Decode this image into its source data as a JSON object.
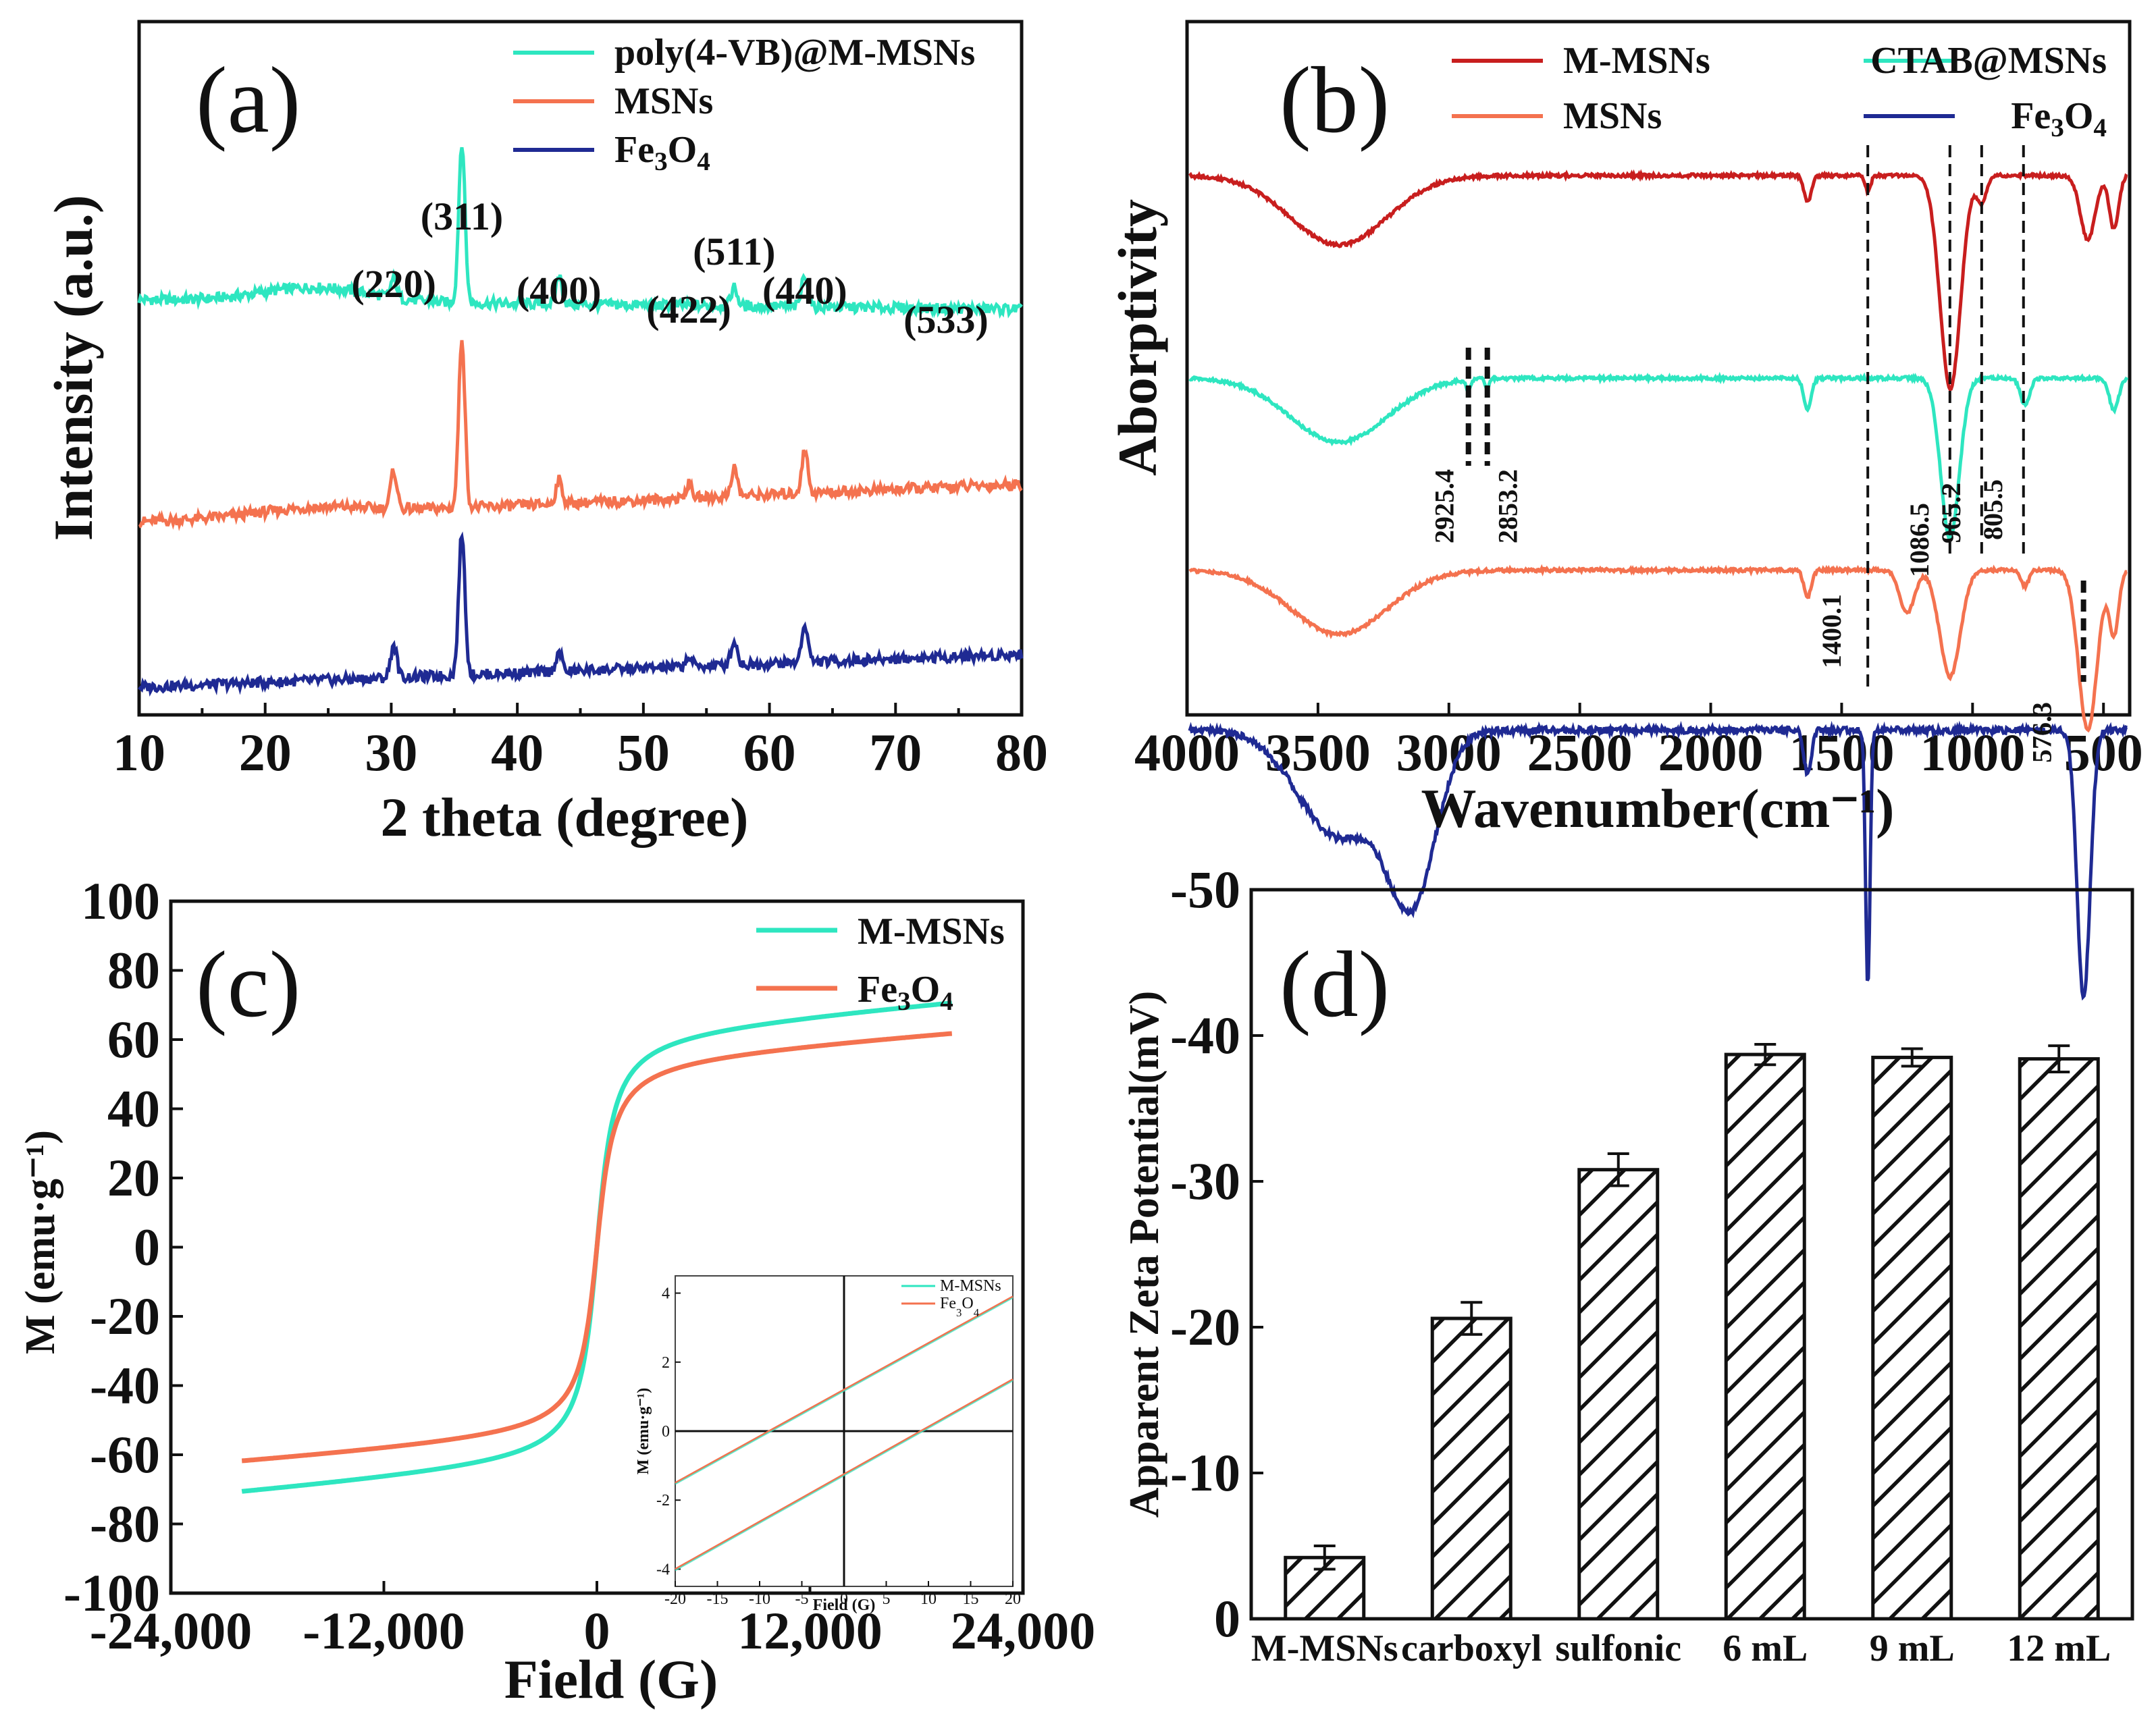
{
  "figure": {
    "panels": [
      "(a)",
      "(b)",
      "(c)",
      "(d)"
    ]
  },
  "chart_data": [
    {
      "panel": "(a)",
      "type": "line",
      "xlabel": "2 theta (degree)",
      "ylabel": "Intensity (a.u.)",
      "xlim": [
        10,
        80
      ],
      "xticks": [
        10,
        20,
        30,
        40,
        50,
        60,
        70,
        80
      ],
      "legend_position": "top-right",
      "peaks": [
        {
          "label": "(220)",
          "x": 30.2
        },
        {
          "label": "(311)",
          "x": 35.6
        },
        {
          "label": "(400)",
          "x": 43.3
        },
        {
          "label": "(422)",
          "x": 53.6
        },
        {
          "label": "(511)",
          "x": 57.2
        },
        {
          "label": "(440)",
          "x": 62.8
        },
        {
          "label": "(533)",
          "x": 74.0
        }
      ],
      "series": [
        {
          "name": "poly(4-VB)@M-MSNs",
          "color": "#2ee6c0",
          "offset": 0.0,
          "baseline_start": 0.08,
          "baseline_end": 0.06,
          "hump_center": 24,
          "hump_height": 0.03,
          "intensity": [
            0.04,
            0.34,
            0.06,
            0.0,
            0.04,
            0.07,
            0.0
          ]
        },
        {
          "name": "MSNs",
          "color": "#f4724f",
          "offset": -0.37,
          "baseline_start": -0.02,
          "baseline_end": 0.06,
          "hump_center": 24,
          "hump_height": 0.015,
          "intensity": [
            0.08,
            0.36,
            0.05,
            0.03,
            0.06,
            0.09,
            0.0
          ]
        },
        {
          "name": "Fe₃O₄",
          "color": "#1f2a93",
          "offset": -0.72,
          "baseline_start": -0.02,
          "baseline_end": 0.05,
          "hump_center": 24,
          "hump_height": 0.0,
          "intensity": [
            0.07,
            0.3,
            0.04,
            0.02,
            0.05,
            0.08,
            0.0
          ]
        }
      ]
    },
    {
      "panel": "(b)",
      "type": "line",
      "xlabel": "Wavenumber(cm⁻¹)",
      "ylabel": "Aborptivity",
      "xlim": [
        4000,
        400
      ],
      "xticks": [
        4000,
        3500,
        3000,
        2500,
        2000,
        1500,
        1000,
        500
      ],
      "legend_position": "top",
      "annotations": [
        {
          "label": "2925.4",
          "x": 2925.4
        },
        {
          "label": "2853.2",
          "x": 2853.2
        },
        {
          "label": "1400.1",
          "x": 1400.1
        },
        {
          "label": "1086.5",
          "x": 1086.5
        },
        {
          "label": "965.2",
          "x": 965.2
        },
        {
          "label": "805.5",
          "x": 805.5
        },
        {
          "label": "576.3",
          "x": 576.3
        }
      ],
      "series": [
        {
          "name": "M-MSNs",
          "color": "#c81e1e",
          "offset": 1.0,
          "bands": [
            [
              3420,
              260,
              0.13
            ],
            [
              1630,
              20,
              0.05
            ],
            [
              1400,
              15,
              0.03
            ],
            [
              1085,
              55,
              0.4
            ],
            [
              965,
              25,
              0.05
            ],
            [
              560,
              40,
              0.12
            ],
            [
              460,
              25,
              0.1
            ]
          ]
        },
        {
          "name": "CTAB@MSNs",
          "color": "#2ee6c0",
          "offset": 0.62,
          "bands": [
            [
              3420,
              260,
              0.12
            ],
            [
              2925,
              12,
              0.02
            ],
            [
              2853,
              10,
              0.02
            ],
            [
              1630,
              20,
              0.06
            ],
            [
              1086,
              50,
              0.3
            ],
            [
              800,
              25,
              0.05
            ],
            [
              460,
              25,
              0.06
            ]
          ]
        },
        {
          "name": "MSNs",
          "color": "#f4724f",
          "offset": 0.26,
          "bands": [
            [
              3420,
              260,
              0.12
            ],
            [
              1630,
              20,
              0.05
            ],
            [
              1086,
              55,
              0.2
            ],
            [
              1250,
              40,
              0.08
            ],
            [
              800,
              20,
              0.03
            ],
            [
              560,
              50,
              0.3
            ],
            [
              460,
              25,
              0.12
            ]
          ]
        },
        {
          "name": "Fe₃O₄",
          "color": "#1f2a93",
          "offset": -0.04,
          "bands": [
            [
              3420,
              220,
              0.2
            ],
            [
              3140,
              130,
              0.3
            ],
            [
              1630,
              20,
              0.08
            ],
            [
              1400,
              12,
              0.48
            ],
            [
              576,
              35,
              0.5
            ]
          ]
        }
      ]
    },
    {
      "panel": "(c)",
      "type": "line",
      "xlabel": "Field (G)",
      "ylabel": "M (emu·g⁻¹)",
      "xlim": [
        -24000,
        24000
      ],
      "ylim": [
        -100,
        100
      ],
      "xticks": [
        -24000,
        -12000,
        0,
        12000,
        24000
      ],
      "xtick_labels": [
        "-24,000",
        "-12,000",
        "0",
        "12,000",
        "24,000"
      ],
      "yticks": [
        -100,
        -80,
        -60,
        -40,
        -20,
        0,
        20,
        40,
        60,
        80,
        100
      ],
      "legend_position": "top-right",
      "series": [
        {
          "name": "M-MSNs",
          "color": "#2ee6c0",
          "saturation": 72,
          "field_range": [
            -20000,
            20000
          ],
          "coercivity": 10
        },
        {
          "name": "Fe₃O₄",
          "color": "#f4724f",
          "saturation": 63,
          "field_range": [
            -20000,
            20000
          ],
          "coercivity": 8.5
        }
      ],
      "inset": {
        "xlabel": "Field (G)",
        "ylabel": "M (emu·g⁻¹)",
        "xlim": [
          -20,
          20
        ],
        "ylim": [
          -4.5,
          4.5
        ],
        "xticks": [
          -20,
          -15,
          -10,
          -5,
          0,
          5,
          10,
          15,
          20
        ],
        "yticks": [
          -4,
          -2,
          0,
          2,
          4
        ],
        "series": [
          {
            "name": "M-MSNs",
            "color": "#2ee6c0"
          },
          {
            "name": "Fe₃O₄",
            "color": "#f4724f"
          }
        ],
        "lines": [
          {
            "from": [
              -20,
              -1.5
            ],
            "to": [
              20,
              3.9
            ]
          },
          {
            "from": [
              -20,
              -4.0
            ],
            "to": [
              20,
              1.5
            ]
          }
        ]
      }
    },
    {
      "panel": "(d)",
      "type": "bar",
      "xlabel": "",
      "ylabel": "Apparent Zeta Potential(mV)",
      "ylim": [
        0,
        -50
      ],
      "yticks": [
        0,
        -10,
        -20,
        -30,
        -40,
        -50
      ],
      "categories": [
        "M-MSNs",
        "carboxyl",
        "sulfonic",
        "6 mL",
        "9 mL",
        "12 mL"
      ],
      "values": [
        -4.2,
        -20.6,
        -30.8,
        -38.7,
        -38.5,
        -38.4
      ],
      "errors": [
        0.8,
        1.1,
        1.1,
        0.7,
        0.6,
        0.9
      ]
    }
  ]
}
